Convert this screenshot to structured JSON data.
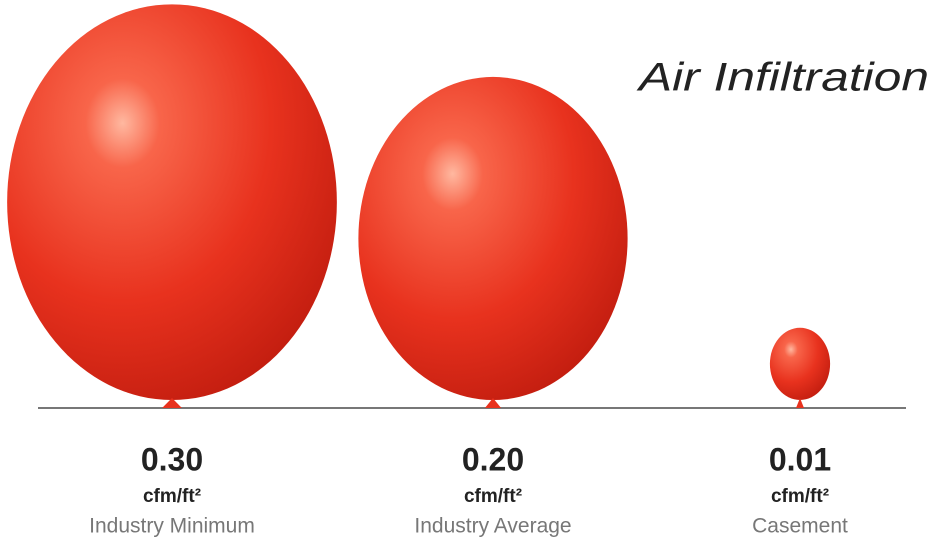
{
  "chart_data": {
    "type": "balloon",
    "title": "Air Infiltration",
    "unit": "cfm/ft²",
    "categories": [
      "Industry Minimum",
      "Industry Average",
      "Casement"
    ],
    "values": [
      0.3,
      0.2,
      0.01
    ],
    "value_labels": [
      "0.30",
      "0.20",
      "0.01"
    ],
    "color": "#e8321e"
  }
}
